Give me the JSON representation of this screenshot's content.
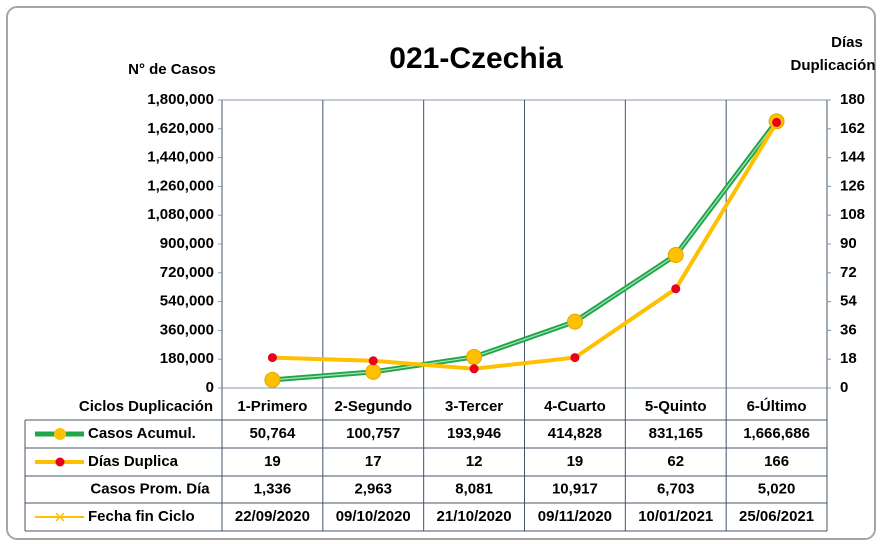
{
  "chart_data": {
    "type": "line",
    "title": "021-Czechia",
    "y_label": "N° de Casos",
    "y2_label": [
      "Días",
      "Duplicación"
    ],
    "table_header": "Ciclos Duplicación",
    "categories": [
      "1-Primero",
      "2-Segundo",
      "3-Tercer",
      "4-Cuarto",
      "5-Quinto",
      "6-Último"
    ],
    "ylim": [
      0,
      1800000
    ],
    "yticks": [
      {
        "value": 0,
        "label": "0"
      },
      {
        "value": 180000,
        "label": "180,000"
      },
      {
        "value": 360000,
        "label": "360,000"
      },
      {
        "value": 540000,
        "label": "540,000"
      },
      {
        "value": 720000,
        "label": "720,000"
      },
      {
        "value": 900000,
        "label": "900,000"
      },
      {
        "value": 1080000,
        "label": "1,080,000"
      },
      {
        "value": 1260000,
        "label": "1,260,000"
      },
      {
        "value": 1440000,
        "label": "1,440,000"
      },
      {
        "value": 1620000,
        "label": "1,620,000"
      },
      {
        "value": 1800000,
        "label": "1,800,000"
      }
    ],
    "y2lim": [
      0,
      180
    ],
    "y2ticks": [
      0,
      18,
      36,
      54,
      72,
      90,
      108,
      126,
      144,
      162,
      180
    ],
    "series": [
      {
        "name": "Casos Acumul.",
        "color": "#1fa64a",
        "marker_color": "#ffc000",
        "line": true,
        "values": [
          50764,
          100757,
          193946,
          414828,
          831165,
          1666686
        ],
        "value_labels": [
          "50,764",
          "100,757",
          "193,946",
          "414,828",
          "831,165",
          "1,666,686"
        ]
      },
      {
        "name": "Días Duplica",
        "color": "#ffc000",
        "marker_color": "#e8001c",
        "line": true,
        "axis": "y2",
        "values": [
          19,
          17,
          12,
          19,
          62,
          166
        ]
      },
      {
        "name": "Casos Prom. Día",
        "line": false,
        "values": [
          1336,
          2963,
          8081,
          10917,
          6703,
          5020
        ],
        "value_labels": [
          "1,336",
          "2,963",
          "8,081",
          "10,917",
          "6,703",
          "5,020"
        ]
      }
    ],
    "dates": {
      "name": "Fecha fin Ciclo",
      "color": "#ffc000",
      "labels": [
        "22/09/2020",
        "09/10/2020",
        "21/10/2020",
        "09/11/2020",
        "10/01/2021",
        "25/06/2021"
      ]
    }
  }
}
